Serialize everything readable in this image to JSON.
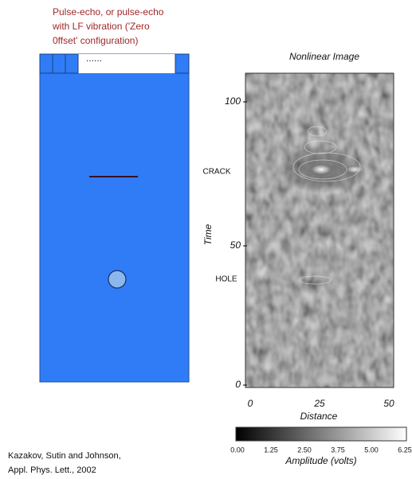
{
  "setup": {
    "description": [
      "Pulse-echo, or pulse-echo",
      "with LF vibration ('Zero",
      "0ffset' configuration)"
    ],
    "dots": "......"
  },
  "image": {
    "title": "Nonlinear Image",
    "y_label": "Time",
    "y_ticks": [
      "100",
      "50",
      "0"
    ],
    "x_label": "Distance",
    "x_ticks": [
      "0",
      "25",
      "50"
    ],
    "annotations": [
      "CRACK",
      "HOLE"
    ],
    "colorbar": {
      "label": "Amplitude (volts)",
      "ticks": [
        "0.00",
        "1.25",
        "2.50",
        "3.75",
        "5.00",
        "6.25"
      ]
    }
  },
  "citation": [
    "Kazakov, Sutin and Johnson,",
    "Appl. Phys. Lett., 2002"
  ]
}
